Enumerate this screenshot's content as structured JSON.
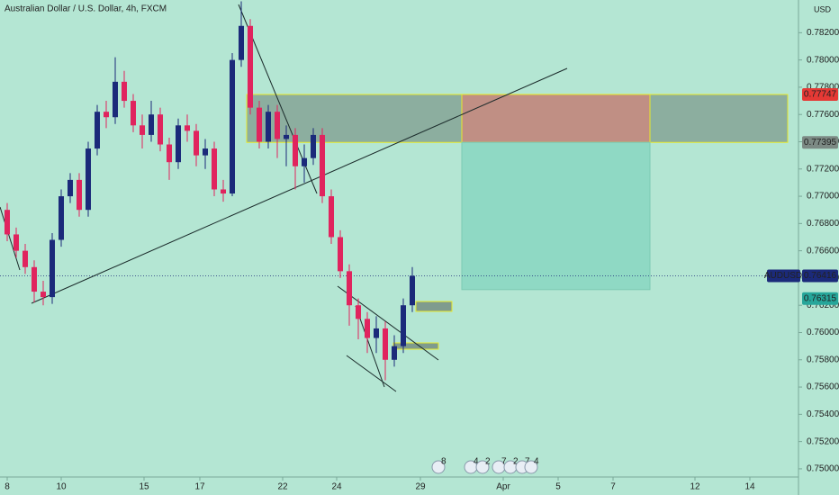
{
  "chart_data": {
    "type": "candlestick",
    "title": "Australian Dollar / U.S. Dollar, 4h, FXCM",
    "currency": "USD",
    "symbol": "AUDUSD",
    "up_color": "#1b2a7a",
    "down_color": "#e0245e",
    "x": [
      1.6,
      3.6,
      5.6,
      7.6,
      9.6,
      11.6,
      13.6,
      15.6,
      17.6,
      19.6,
      21.6,
      23.6,
      25.6,
      27.6,
      29.6,
      31.6,
      33.6,
      35.6,
      37.6,
      39.6,
      41.6,
      43.6,
      45.6,
      47.6,
      49.6,
      51.6,
      53.6,
      55.6,
      57.6,
      59.6,
      61.6,
      63.6,
      65.6,
      67.6,
      69.6,
      71.6,
      73.6,
      75.6,
      77.6,
      79.6,
      81.6,
      83.6,
      85.6,
      87.6,
      89.6,
      91.6
    ],
    "open": [
      0.769,
      0.7672,
      0.766,
      0.7648,
      0.763,
      0.7626,
      0.7668,
      0.77,
      0.7712,
      0.769,
      0.7735,
      0.7762,
      0.7758,
      0.7784,
      0.777,
      0.7752,
      0.7745,
      0.776,
      0.7738,
      0.7725,
      0.7752,
      0.7748,
      0.773,
      0.7735,
      0.7705,
      0.7702,
      0.78,
      0.7825,
      0.7765,
      0.774,
      0.7762,
      0.7742,
      0.7745,
      0.7722,
      0.7728,
      0.7745,
      0.77,
      0.767,
      0.7645,
      0.762,
      0.761,
      0.7596,
      0.7603,
      0.758,
      0.759,
      0.762
    ],
    "high": [
      0.7695,
      0.7677,
      0.7665,
      0.7653,
      0.7638,
      0.7673,
      0.7705,
      0.7717,
      0.7717,
      0.774,
      0.7767,
      0.777,
      0.7802,
      0.7792,
      0.7775,
      0.776,
      0.777,
      0.7765,
      0.7743,
      0.7757,
      0.776,
      0.7753,
      0.7742,
      0.774,
      0.7712,
      0.7805,
      0.7843,
      0.783,
      0.777,
      0.7767,
      0.7767,
      0.7752,
      0.775,
      0.7738,
      0.775,
      0.775,
      0.7705,
      0.7675,
      0.765,
      0.7625,
      0.7615,
      0.7612,
      0.7608,
      0.7598,
      0.7625,
      0.7648
    ],
    "low": [
      0.7667,
      0.7655,
      0.7643,
      0.7622,
      0.762,
      0.7621,
      0.7663,
      0.7695,
      0.7685,
      0.7685,
      0.773,
      0.775,
      0.7753,
      0.7765,
      0.7747,
      0.7735,
      0.774,
      0.7733,
      0.7712,
      0.772,
      0.774,
      0.7722,
      0.772,
      0.77,
      0.7696,
      0.77,
      0.7795,
      0.776,
      0.7735,
      0.7735,
      0.7728,
      0.7722,
      0.7705,
      0.771,
      0.7723,
      0.7695,
      0.7665,
      0.764,
      0.7605,
      0.7595,
      0.7585,
      0.7585,
      0.7565,
      0.7575,
      0.7585,
      0.7615
    ],
    "close": [
      0.7672,
      0.766,
      0.7648,
      0.763,
      0.7626,
      0.7668,
      0.77,
      0.7712,
      0.769,
      0.7735,
      0.7762,
      0.7758,
      0.7784,
      0.777,
      0.7752,
      0.7745,
      0.776,
      0.7738,
      0.7725,
      0.7752,
      0.7748,
      0.773,
      0.7735,
      0.7705,
      0.7702,
      0.78,
      0.7825,
      0.7765,
      0.774,
      0.7762,
      0.7742,
      0.7745,
      0.7722,
      0.7728,
      0.7745,
      0.77,
      0.767,
      0.7645,
      0.762,
      0.761,
      0.7596,
      0.7603,
      0.758,
      0.759,
      0.762,
      0.76416
    ],
    "xlim": [
      0,
      177.4
    ],
    "xticks": [
      {
        "value": 1.6,
        "label": "8"
      },
      {
        "value": 13.6,
        "label": "10"
      },
      {
        "value": 32,
        "label": "15"
      },
      {
        "value": 44.4,
        "label": "17"
      },
      {
        "value": 62.8,
        "label": "22"
      },
      {
        "value": 74.8,
        "label": "24"
      },
      {
        "value": 93.4,
        "label": "29"
      },
      {
        "value": 111.8,
        "label": "Apr"
      },
      {
        "value": 124,
        "label": "5"
      },
      {
        "value": 136.2,
        "label": "7"
      },
      {
        "value": 154.4,
        "label": "12"
      },
      {
        "value": 166.6,
        "label": "14"
      }
    ],
    "ylim": [
      0.7494,
      0.7844
    ],
    "yticks": [
      {
        "value": 0.75,
        "label": "0.75000"
      },
      {
        "value": 0.752,
        "label": "0.75200"
      },
      {
        "value": 0.754,
        "label": "0.75400"
      },
      {
        "value": 0.756,
        "label": "0.75600"
      },
      {
        "value": 0.758,
        "label": "0.75800"
      },
      {
        "value": 0.76,
        "label": "0.76000"
      },
      {
        "value": 0.762,
        "label": "0.76200"
      },
      {
        "value": 0.764,
        "label": "0.76400"
      },
      {
        "value": 0.766,
        "label": "0.76600"
      },
      {
        "value": 0.768,
        "label": "0.76800"
      },
      {
        "value": 0.77,
        "label": "0.77000"
      },
      {
        "value": 0.772,
        "label": "0.77200"
      },
      {
        "value": 0.774,
        "label": "0.77400"
      },
      {
        "value": 0.776,
        "label": "0.77600"
      },
      {
        "value": 0.778,
        "label": "0.77800"
      },
      {
        "value": 0.78,
        "label": "0.78000"
      },
      {
        "value": 0.782,
        "label": "0.78200"
      }
    ],
    "last_price": 0.76416,
    "zone_top": 0.77747,
    "zone_bottom": 0.77395,
    "target": 0.76315,
    "events": [
      "8",
      "4",
      "2",
      "7",
      "2",
      "7",
      "4"
    ]
  }
}
